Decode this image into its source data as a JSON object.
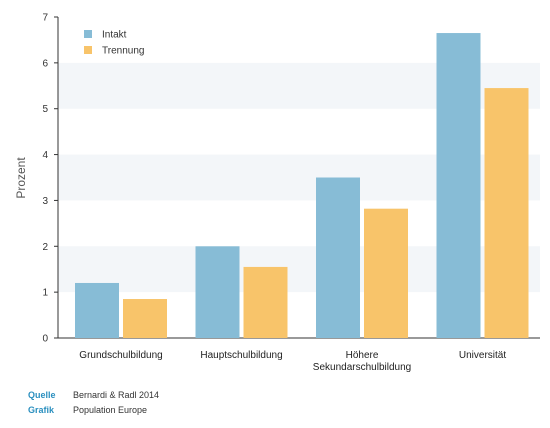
{
  "chart_data": {
    "type": "bar",
    "categories": [
      "Grundschulbildung",
      "Hauptschulbildung",
      "Höhere Sekundarschulbildung",
      "Universität"
    ],
    "category_lines": [
      [
        "Grundschulbildung"
      ],
      [
        "Hauptschulbildung"
      ],
      [
        "Höhere",
        "Sekundarschulbildung"
      ],
      [
        "Universität"
      ]
    ],
    "series": [
      {
        "name": "Intakt",
        "color": "#87bcd6",
        "values": [
          1.2,
          2.0,
          3.5,
          6.65
        ]
      },
      {
        "name": "Trennung",
        "color": "#f8c46a",
        "values": [
          0.85,
          1.55,
          2.82,
          5.45
        ]
      }
    ],
    "ylabel": "Prozent",
    "ylim": [
      0,
      7
    ],
    "yticks": [
      0,
      1,
      2,
      3,
      4,
      5,
      6,
      7
    ],
    "grid": "horizontal bands",
    "legend": "top-left"
  },
  "credits": {
    "source_label": "Quelle",
    "source_value": "Bernardi & Radl 2014",
    "graphic_label": "Grafik",
    "graphic_value": "Population Europe"
  }
}
